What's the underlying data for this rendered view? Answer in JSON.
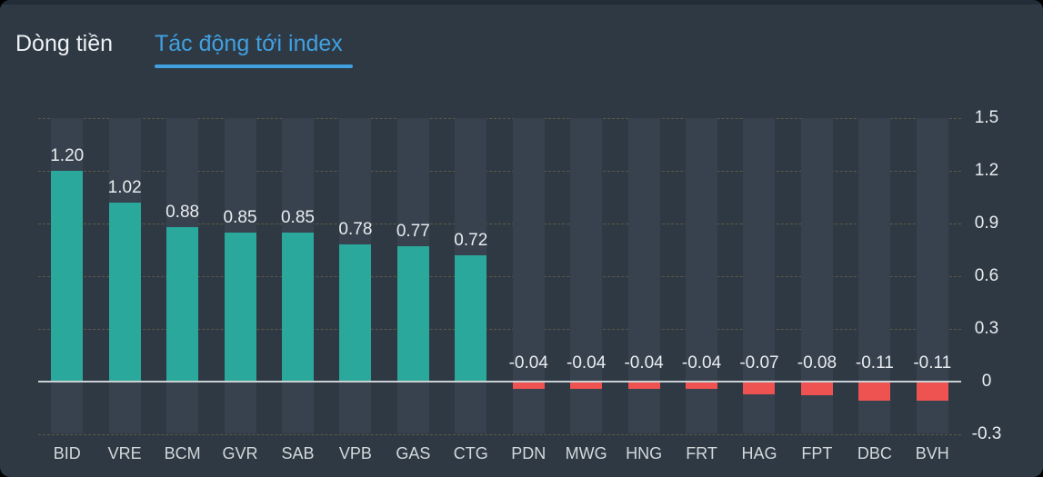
{
  "tabs": [
    {
      "label": "Dòng tiền",
      "active": false
    },
    {
      "label": "Tác động tới index",
      "active": true
    }
  ],
  "colors": {
    "panel_bg": "#2e3944",
    "top_strip": "#232d37",
    "band": "#37424e",
    "positive": "#2aa89c",
    "negative": "#ef5351",
    "zero_line": "#cbd0d4",
    "grid_dash": "rgba(207,164,80,0.3)",
    "tab_active": "#41a0e0",
    "tab_inactive": "#eef1f3",
    "value_label": "#e9ecef",
    "x_label": "#d3d8db",
    "y_label": "#e9ecef"
  },
  "chart_data": {
    "type": "bar",
    "categories": [
      "BID",
      "VRE",
      "BCM",
      "GVR",
      "SAB",
      "VPB",
      "GAS",
      "CTG",
      "PDN",
      "MWG",
      "HNG",
      "FRT",
      "HAG",
      "FPT",
      "DBC",
      "BVH"
    ],
    "values": [
      1.2,
      1.02,
      0.88,
      0.85,
      0.85,
      0.78,
      0.77,
      0.72,
      -0.04,
      -0.04,
      -0.04,
      -0.04,
      -0.07,
      -0.08,
      -0.11,
      -0.11
    ],
    "value_labels": [
      "1.20",
      "1.02",
      "0.88",
      "0.85",
      "0.85",
      "0.78",
      "0.77",
      "0.72",
      "-0.04",
      "-0.04",
      "-0.04",
      "-0.04",
      "-0.07",
      "-0.08",
      "-0.11",
      "-0.11"
    ],
    "y_ticks": [
      1.5,
      1.2,
      0.9,
      0.6,
      0.3,
      0,
      -0.3
    ],
    "y_tick_labels": [
      "1.5",
      "1.2",
      "0.9",
      "0.6",
      "0.3",
      "0",
      "-0.3"
    ],
    "ylim": [
      -0.3,
      1.5
    ],
    "title": "",
    "xlabel": "",
    "ylabel": "",
    "grid": true,
    "legend": "none",
    "y_axis_position": "right"
  }
}
